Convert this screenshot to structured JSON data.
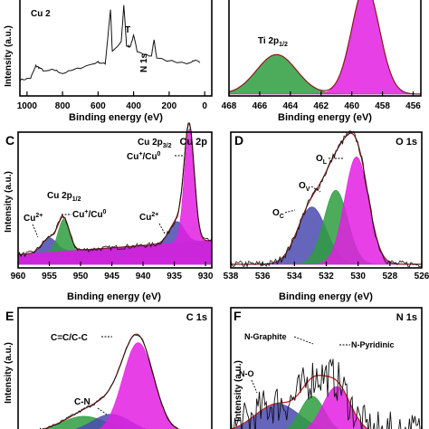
{
  "chart_data": [
    {
      "panel": "",
      "type": "line",
      "xlabel": "Binding energy (eV)",
      "ylabel": "Intensity (a.u.)",
      "x_ticks": [
        1000,
        800,
        600,
        400,
        200,
        0
      ],
      "xlim": [
        1040,
        -40
      ],
      "annotations": [
        "Cu 2",
        "T",
        "N 1s"
      ],
      "corner": "",
      "survey": [
        [
          1040,
          0.15
        ],
        [
          980,
          0.17
        ],
        [
          950,
          0.3
        ],
        [
          930,
          0.28
        ],
        [
          900,
          0.24
        ],
        [
          850,
          0.26
        ],
        [
          800,
          0.22
        ],
        [
          700,
          0.28
        ],
        [
          600,
          0.34
        ],
        [
          560,
          0.32
        ],
        [
          530,
          0.9
        ],
        [
          520,
          0.45
        ],
        [
          470,
          0.55
        ],
        [
          455,
          0.95
        ],
        [
          440,
          0.52
        ],
        [
          420,
          0.5
        ],
        [
          400,
          0.62
        ],
        [
          380,
          0.46
        ],
        [
          300,
          0.4
        ],
        [
          285,
          0.58
        ],
        [
          270,
          0.38
        ],
        [
          100,
          0.32
        ],
        [
          60,
          0.36
        ],
        [
          20,
          0.34
        ]
      ]
    },
    {
      "panel": "",
      "type": "area",
      "xlabel": "Binding energy (eV)",
      "ylabel": "",
      "x_ticks": [
        468,
        466,
        464,
        462,
        460,
        458,
        456
      ],
      "xlim": [
        468,
        455.5
      ],
      "annotations": [
        "Ti 2p1/2"
      ],
      "corner": "",
      "peaks": [
        {
          "center": 464.9,
          "width": 1.3,
          "height": 0.42,
          "color": "#2e9e3e"
        },
        {
          "center": 459.1,
          "width": 0.9,
          "height": 1.15,
          "color": "#e31ee3"
        }
      ]
    },
    {
      "panel": "C",
      "type": "area",
      "xlabel": "Binding energy (eV)",
      "ylabel": "Intensity (a.u.)",
      "x_ticks": [
        960,
        955,
        950,
        945,
        940,
        935,
        930
      ],
      "xlim": [
        960,
        929
      ],
      "corner": "Cu 2p",
      "annotations": [
        "Cu 2p3/2",
        "Cu+/Cu0",
        "Cu 2p1/2",
        "Cu+/Cu0",
        "Cu2+",
        "Cu2+"
      ],
      "baseline": [
        0.08,
        0.2
      ],
      "peaks": [
        {
          "center": 955.0,
          "width": 1.2,
          "height": 0.12,
          "color": "#4a4ab0"
        },
        {
          "center": 952.7,
          "width": 0.9,
          "height": 0.27,
          "color": "#2e9e3e"
        },
        {
          "center": 934.6,
          "width": 1.2,
          "height": 0.18,
          "color": "#4a4ab0"
        },
        {
          "center": 932.6,
          "width": 0.8,
          "height": 0.95,
          "color": "#e31ee3"
        }
      ]
    },
    {
      "panel": "D",
      "type": "area",
      "xlabel": "Binding energy (eV)",
      "ylabel": "",
      "x_ticks": [
        538,
        536,
        534,
        532,
        530,
        528,
        526
      ],
      "xlim": [
        538,
        526
      ],
      "corner": "O 1s",
      "annotations": [
        "OL",
        "OV",
        "OC"
      ],
      "peaks": [
        {
          "center": 532.9,
          "width": 0.9,
          "height": 0.48,
          "color": "#4a4ab0"
        },
        {
          "center": 531.4,
          "width": 0.75,
          "height": 0.62,
          "color": "#2e9e3e"
        },
        {
          "center": 530.1,
          "width": 0.75,
          "height": 0.9,
          "color": "#e31ee3"
        }
      ]
    },
    {
      "panel": "E",
      "type": "area",
      "xlabel": "",
      "ylabel": "Intensity (a.u.)",
      "xlim": [
        291,
        281
      ],
      "corner": "C 1s",
      "annotations": [
        "C=C/C-C",
        "C-N"
      ],
      "peaks": [
        {
          "center": 287.6,
          "width": 1.2,
          "height": 0.16,
          "color": "#2e9e3e"
        },
        {
          "center": 286.2,
          "width": 1.0,
          "height": 0.18,
          "color": "#4a4ab0"
        },
        {
          "center": 284.8,
          "width": 0.8,
          "height": 0.88,
          "color": "#e31ee3"
        }
      ]
    },
    {
      "panel": "F",
      "type": "area",
      "xlabel": "",
      "ylabel": "Intensity (a.u.)",
      "xlim": [
        405,
        394
      ],
      "corner": "N 1s",
      "annotations": [
        "N-Graphite",
        "N-Pyridinic",
        "N-O"
      ],
      "peaks": [
        {
          "center": 402.3,
          "width": 1.3,
          "height": 0.3,
          "color": "#4a4ab0"
        },
        {
          "center": 400.3,
          "width": 0.7,
          "height": 0.38,
          "color": "#2e9e3e"
        },
        {
          "center": 398.9,
          "width": 0.8,
          "height": 0.48,
          "color": "#e31ee3"
        }
      ]
    }
  ]
}
